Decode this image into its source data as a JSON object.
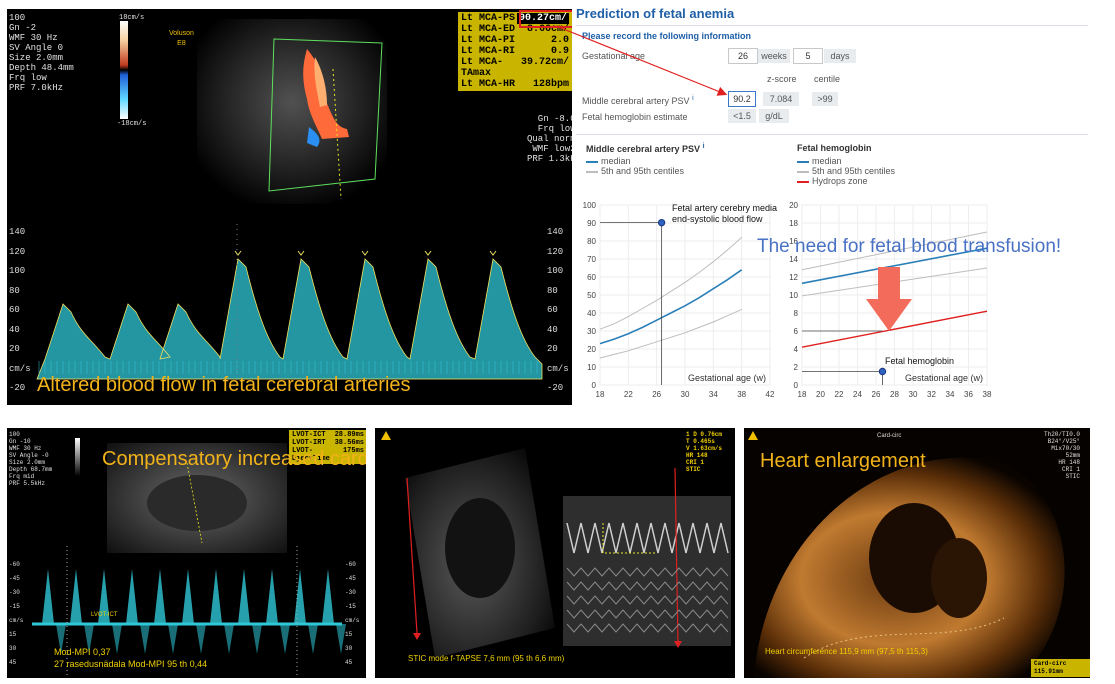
{
  "colors": {
    "caption": "#f2b21a",
    "median_line": "#2a7fb8",
    "centile_line": "#bdbdbd",
    "hydrops_line": "#e02020",
    "arrow": "#f26b5b",
    "highlight": "#e02020",
    "doppler": "#30c8d8"
  },
  "captions": {
    "blood_flow": "Altered blood flow in fetal cerebral arteries",
    "cardiac_output": "Compensatory increased  cardiac output",
    "heart_enlargement": "Heart enlargement",
    "transfusion": "The need for fetal blood transfusion!"
  },
  "doppler_panel": {
    "settings": [
      "100",
      "Gn -2",
      "WMF 30 Hz",
      "SV Angle  0",
      "Size  2.0mm",
      "Depth 48.4mm",
      "Frq low",
      "PRF  7.0kHz"
    ],
    "scale_top": "18cm/s",
    "scale_bottom": "-18cm/s",
    "logo": [
      "Voluson",
      "E8"
    ],
    "measurements": [
      {
        "label": "Lt MCA-PS",
        "value": "90.27cm/"
      },
      {
        "label": "Lt MCA-ED",
        "value": "8.66cm/"
      },
      {
        "label": "Lt MCA-PI",
        "value": "2.0"
      },
      {
        "label": "Lt MCA-RI",
        "value": "0.9"
      },
      {
        "label": "Lt MCA-TAmax",
        "value": "39.72cm/"
      },
      {
        "label": "Lt MCA-HR",
        "value": "128bpm"
      }
    ],
    "right_settings": [
      "Gn -8.0",
      "Frq low",
      "Qual norm",
      "WMF low2",
      "PRF  1.3kH"
    ],
    "axis_ticks": [
      "140",
      "120",
      "100",
      "80",
      "60",
      "40",
      "20",
      "cm/s",
      "-20"
    ]
  },
  "calculator": {
    "title": "Prediction of fetal anemia",
    "subtitle": "Please record the following information",
    "gestational_age_label": "Gestational age",
    "weeks_value": "26",
    "weeks_unit": "weeks",
    "days_value": "5",
    "days_unit": "days",
    "zscore_header": "z-score",
    "centile_header": "centile",
    "mca_label": "Middle cerebral artery PSV",
    "mca_value": "90.2",
    "mca_zscore": "7.084",
    "mca_centile": ">99",
    "hb_label": "Fetal hemoglobin estimate",
    "hb_value": "<1.5",
    "hb_unit": "g/dL",
    "info_mark": "i"
  },
  "chart_data": [
    {
      "type": "line",
      "title": "Middle cerebral artery PSV",
      "xlabel": "Gestational age (w)",
      "ylabel": "",
      "xlim": [
        18,
        42
      ],
      "ylim": [
        0,
        100
      ],
      "x_ticks": [
        18,
        22,
        26,
        30,
        34,
        38,
        42
      ],
      "y_ticks": [
        0,
        10,
        20,
        30,
        40,
        50,
        60,
        70,
        80,
        90,
        100
      ],
      "grid": true,
      "legend": [
        "median",
        "5th and 95th centiles"
      ],
      "series": [
        {
          "name": "median",
          "x": [
            18,
            20,
            22,
            24,
            26,
            28,
            30,
            32,
            34,
            36,
            38
          ],
          "y": [
            23,
            25.5,
            28.5,
            32,
            36,
            40,
            44,
            48.5,
            53.5,
            58.5,
            64
          ]
        },
        {
          "name": "5th centile",
          "x": [
            18,
            20,
            22,
            24,
            26,
            28,
            30,
            32,
            34,
            36,
            38
          ],
          "y": [
            15,
            17,
            19,
            21.5,
            24,
            26.5,
            29,
            32,
            35,
            38.5,
            42
          ]
        },
        {
          "name": "95th centile",
          "x": [
            18,
            20,
            22,
            24,
            26,
            28,
            30,
            32,
            34,
            36,
            38
          ],
          "y": [
            31,
            34,
            38,
            42.5,
            47,
            52,
            57,
            62.5,
            68.5,
            75,
            82
          ]
        }
      ],
      "point": {
        "x": 26.7,
        "y": 90.2
      },
      "annotation": [
        "Fetal artery cerebry media",
        "end-systolic blood flow"
      ]
    },
    {
      "type": "line",
      "title": "Fetal hemoglobin",
      "xlabel": "Gestational age (w)",
      "ylabel": "",
      "xlim": [
        18,
        38
      ],
      "ylim": [
        0,
        20
      ],
      "x_ticks": [
        18,
        20,
        22,
        24,
        26,
        28,
        30,
        32,
        34,
        36,
        38
      ],
      "y_ticks": [
        0,
        2,
        4,
        6,
        8,
        10,
        12,
        14,
        16,
        18,
        20
      ],
      "grid": true,
      "legend": [
        "median",
        "5th and 95th centiles",
        "Hydrops zone"
      ],
      "series": [
        {
          "name": "median",
          "x": [
            18,
            38
          ],
          "y": [
            11.3,
            15.2
          ]
        },
        {
          "name": "5th centile",
          "x": [
            18,
            38
          ],
          "y": [
            9.9,
            13.0
          ]
        },
        {
          "name": "95th centile",
          "x": [
            18,
            38
          ],
          "y": [
            12.8,
            17.0
          ]
        },
        {
          "name": "Hydrops zone",
          "x": [
            18,
            38
          ],
          "y": [
            4.2,
            8.2
          ]
        }
      ],
      "point": {
        "x": 26.7,
        "y": 1.5
      },
      "annotation": [
        "Fetal hemoglobin"
      ]
    }
  ],
  "bottom_left": {
    "settings": [
      "100",
      "Gn -10",
      "WMF 30 Hz",
      "SV Angle -0",
      "Size  2.0mm",
      "Depth 68.7mm",
      "Frq mid",
      "PRF  5.5kHz"
    ],
    "measurements": [
      {
        "label": "LVOT-ICT",
        "value": "28.89ms"
      },
      {
        "label": "LVOT-IRT",
        "value": "38.56ms"
      },
      {
        "label": "LVOT-EjectTime",
        "value": "175ms"
      }
    ],
    "axis_ticks": [
      "-60",
      "-45",
      "-30",
      "-15",
      "cm/s",
      "15",
      "30",
      "45"
    ],
    "footer": [
      "Mod-MPI 0,37",
      "27 rasedusnädala Mod-MPI 95 th 0,44"
    ],
    "trace_label": "LVOT-ICT"
  },
  "bottom_middle": {
    "readout": [
      "1  D  0.76cm",
      "T   0.465s",
      "V  1.63cm/s",
      "HR 148",
      "CRI 1",
      "STIC"
    ],
    "footer": "STIC mode f-TAPSE 7,6 mm (95 th 6,6 mm)"
  },
  "bottom_right": {
    "top_label": "Card-circ",
    "settings": [
      "Th20/TI0.0",
      "B24°/V25°",
      "Mix70/30",
      "52mm",
      "HR 148",
      "CRI 1",
      "STIC"
    ],
    "footer": "Heart circumference 115,9 mm (97,5 th 115,3)",
    "badge": "Card-circ 115.91mm"
  }
}
